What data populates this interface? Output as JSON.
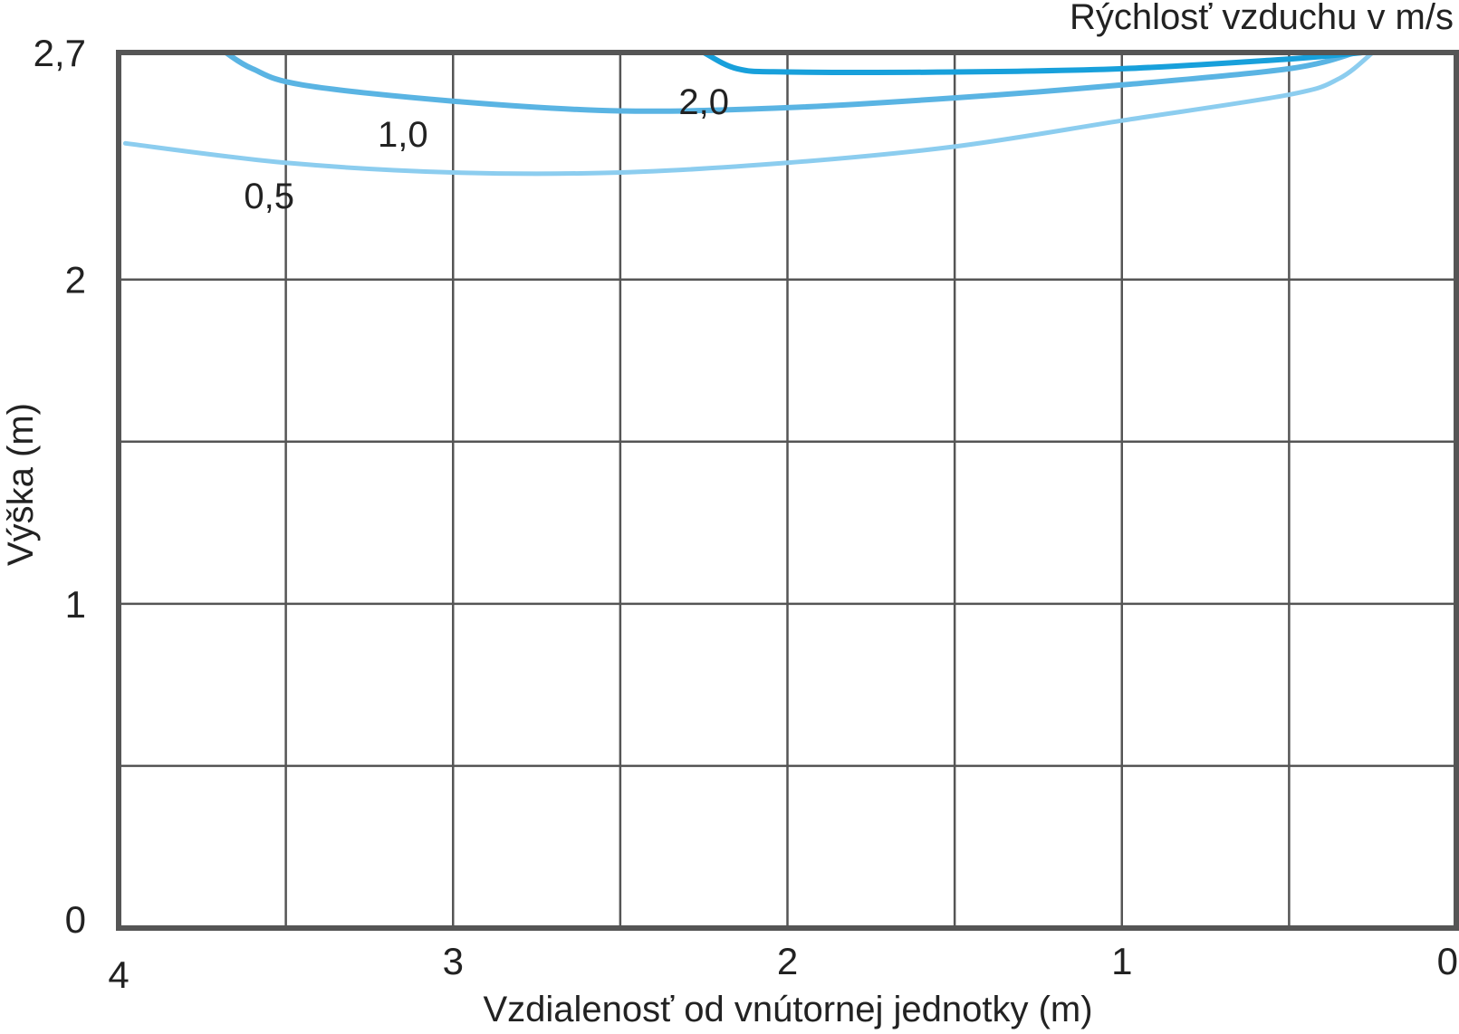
{
  "chart_data": {
    "type": "line",
    "title": "",
    "legend_title": "Rýchlosť vzduchu v m/s",
    "xlabel": "Vzdialenosť od vnútornej jednotky (m)",
    "ylabel": "Výška (m)",
    "xlim": [
      4,
      0
    ],
    "ylim": [
      0,
      2.7
    ],
    "x_direction": "reversed",
    "grid": true,
    "x_gridlines": [
      4,
      3.5,
      3,
      2.5,
      2,
      1.5,
      1,
      0.5,
      0
    ],
    "y_gridlines": [
      0,
      0.5,
      1,
      1.5,
      2,
      2.7
    ],
    "x_ticks": [
      {
        "value": 4,
        "label": "4"
      },
      {
        "value": 3,
        "label": "3"
      },
      {
        "value": 2,
        "label": "2"
      },
      {
        "value": 1,
        "label": "1"
      },
      {
        "value": 0,
        "label": "0"
      }
    ],
    "y_ticks": [
      {
        "value": 0,
        "label": "0"
      },
      {
        "value": 1,
        "label": "1"
      },
      {
        "value": 2,
        "label": "2"
      },
      {
        "value": 2.7,
        "label": "2,7"
      }
    ],
    "series": [
      {
        "name": "0,5",
        "color": "#8ccdef",
        "stroke": 5,
        "label_at": [
          3.55,
          2.22
        ],
        "points": [
          [
            3.98,
            2.42
          ],
          [
            3.5,
            2.36
          ],
          [
            3.0,
            2.33
          ],
          [
            2.5,
            2.33
          ],
          [
            2.0,
            2.36
          ],
          [
            1.5,
            2.41
          ],
          [
            1.0,
            2.49
          ],
          [
            0.5,
            2.57
          ],
          [
            0.35,
            2.62
          ],
          [
            0.25,
            2.7
          ]
        ]
      },
      {
        "name": "1,0",
        "color": "#5ab4e3",
        "stroke": 6,
        "label_at": [
          3.15,
          2.41
        ],
        "points": [
          [
            3.68,
            2.7
          ],
          [
            3.6,
            2.65
          ],
          [
            3.45,
            2.6
          ],
          [
            3.0,
            2.55
          ],
          [
            2.5,
            2.52
          ],
          [
            2.0,
            2.53
          ],
          [
            1.5,
            2.56
          ],
          [
            1.0,
            2.6
          ],
          [
            0.5,
            2.65
          ],
          [
            0.3,
            2.7
          ]
        ]
      },
      {
        "name": "2,0",
        "color": "#18a0db",
        "stroke": 6,
        "label_at": [
          2.25,
          2.51
        ],
        "points": [
          [
            2.25,
            2.7
          ],
          [
            2.15,
            2.65
          ],
          [
            2.0,
            2.64
          ],
          [
            1.5,
            2.64
          ],
          [
            1.0,
            2.65
          ],
          [
            0.5,
            2.68
          ],
          [
            0.28,
            2.7
          ]
        ]
      }
    ]
  }
}
